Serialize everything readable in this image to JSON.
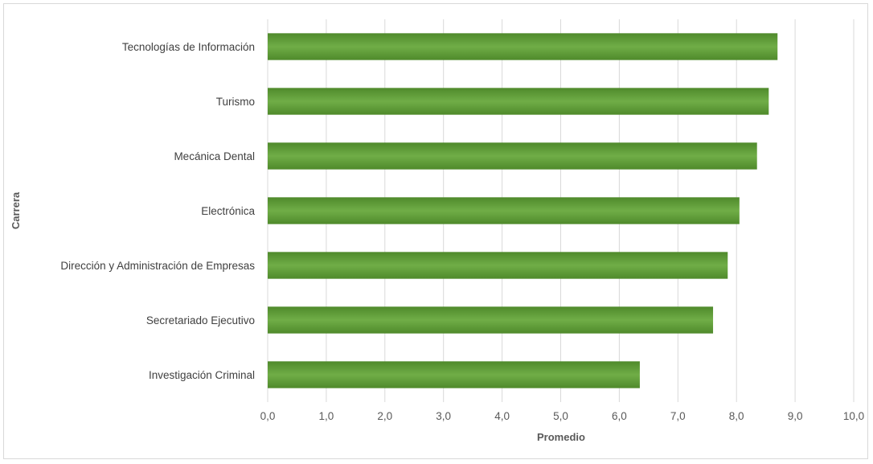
{
  "chart_data": {
    "type": "bar",
    "orientation": "horizontal",
    "categories": [
      "Tecnologías de Información",
      "Turismo",
      "Mecánica Dental",
      "Electrónica",
      "Dirección y Administración de Empresas",
      "Secretariado Ejecutivo",
      "Investigación Criminal"
    ],
    "values": [
      8.7,
      8.55,
      8.35,
      8.05,
      7.85,
      7.6,
      6.35
    ],
    "title": "",
    "xlabel": "Promedio",
    "ylabel": "Carrera",
    "xlim": [
      0,
      10
    ],
    "xticks": [
      "0,0",
      "1,0",
      "2,0",
      "3,0",
      "4,0",
      "5,0",
      "6,0",
      "7,0",
      "8,0",
      "9,0",
      "10,0"
    ],
    "grid": "vertical",
    "legend": "none",
    "bar_color": "#70ad47",
    "bar_color_dark": "#4f8a2b"
  }
}
